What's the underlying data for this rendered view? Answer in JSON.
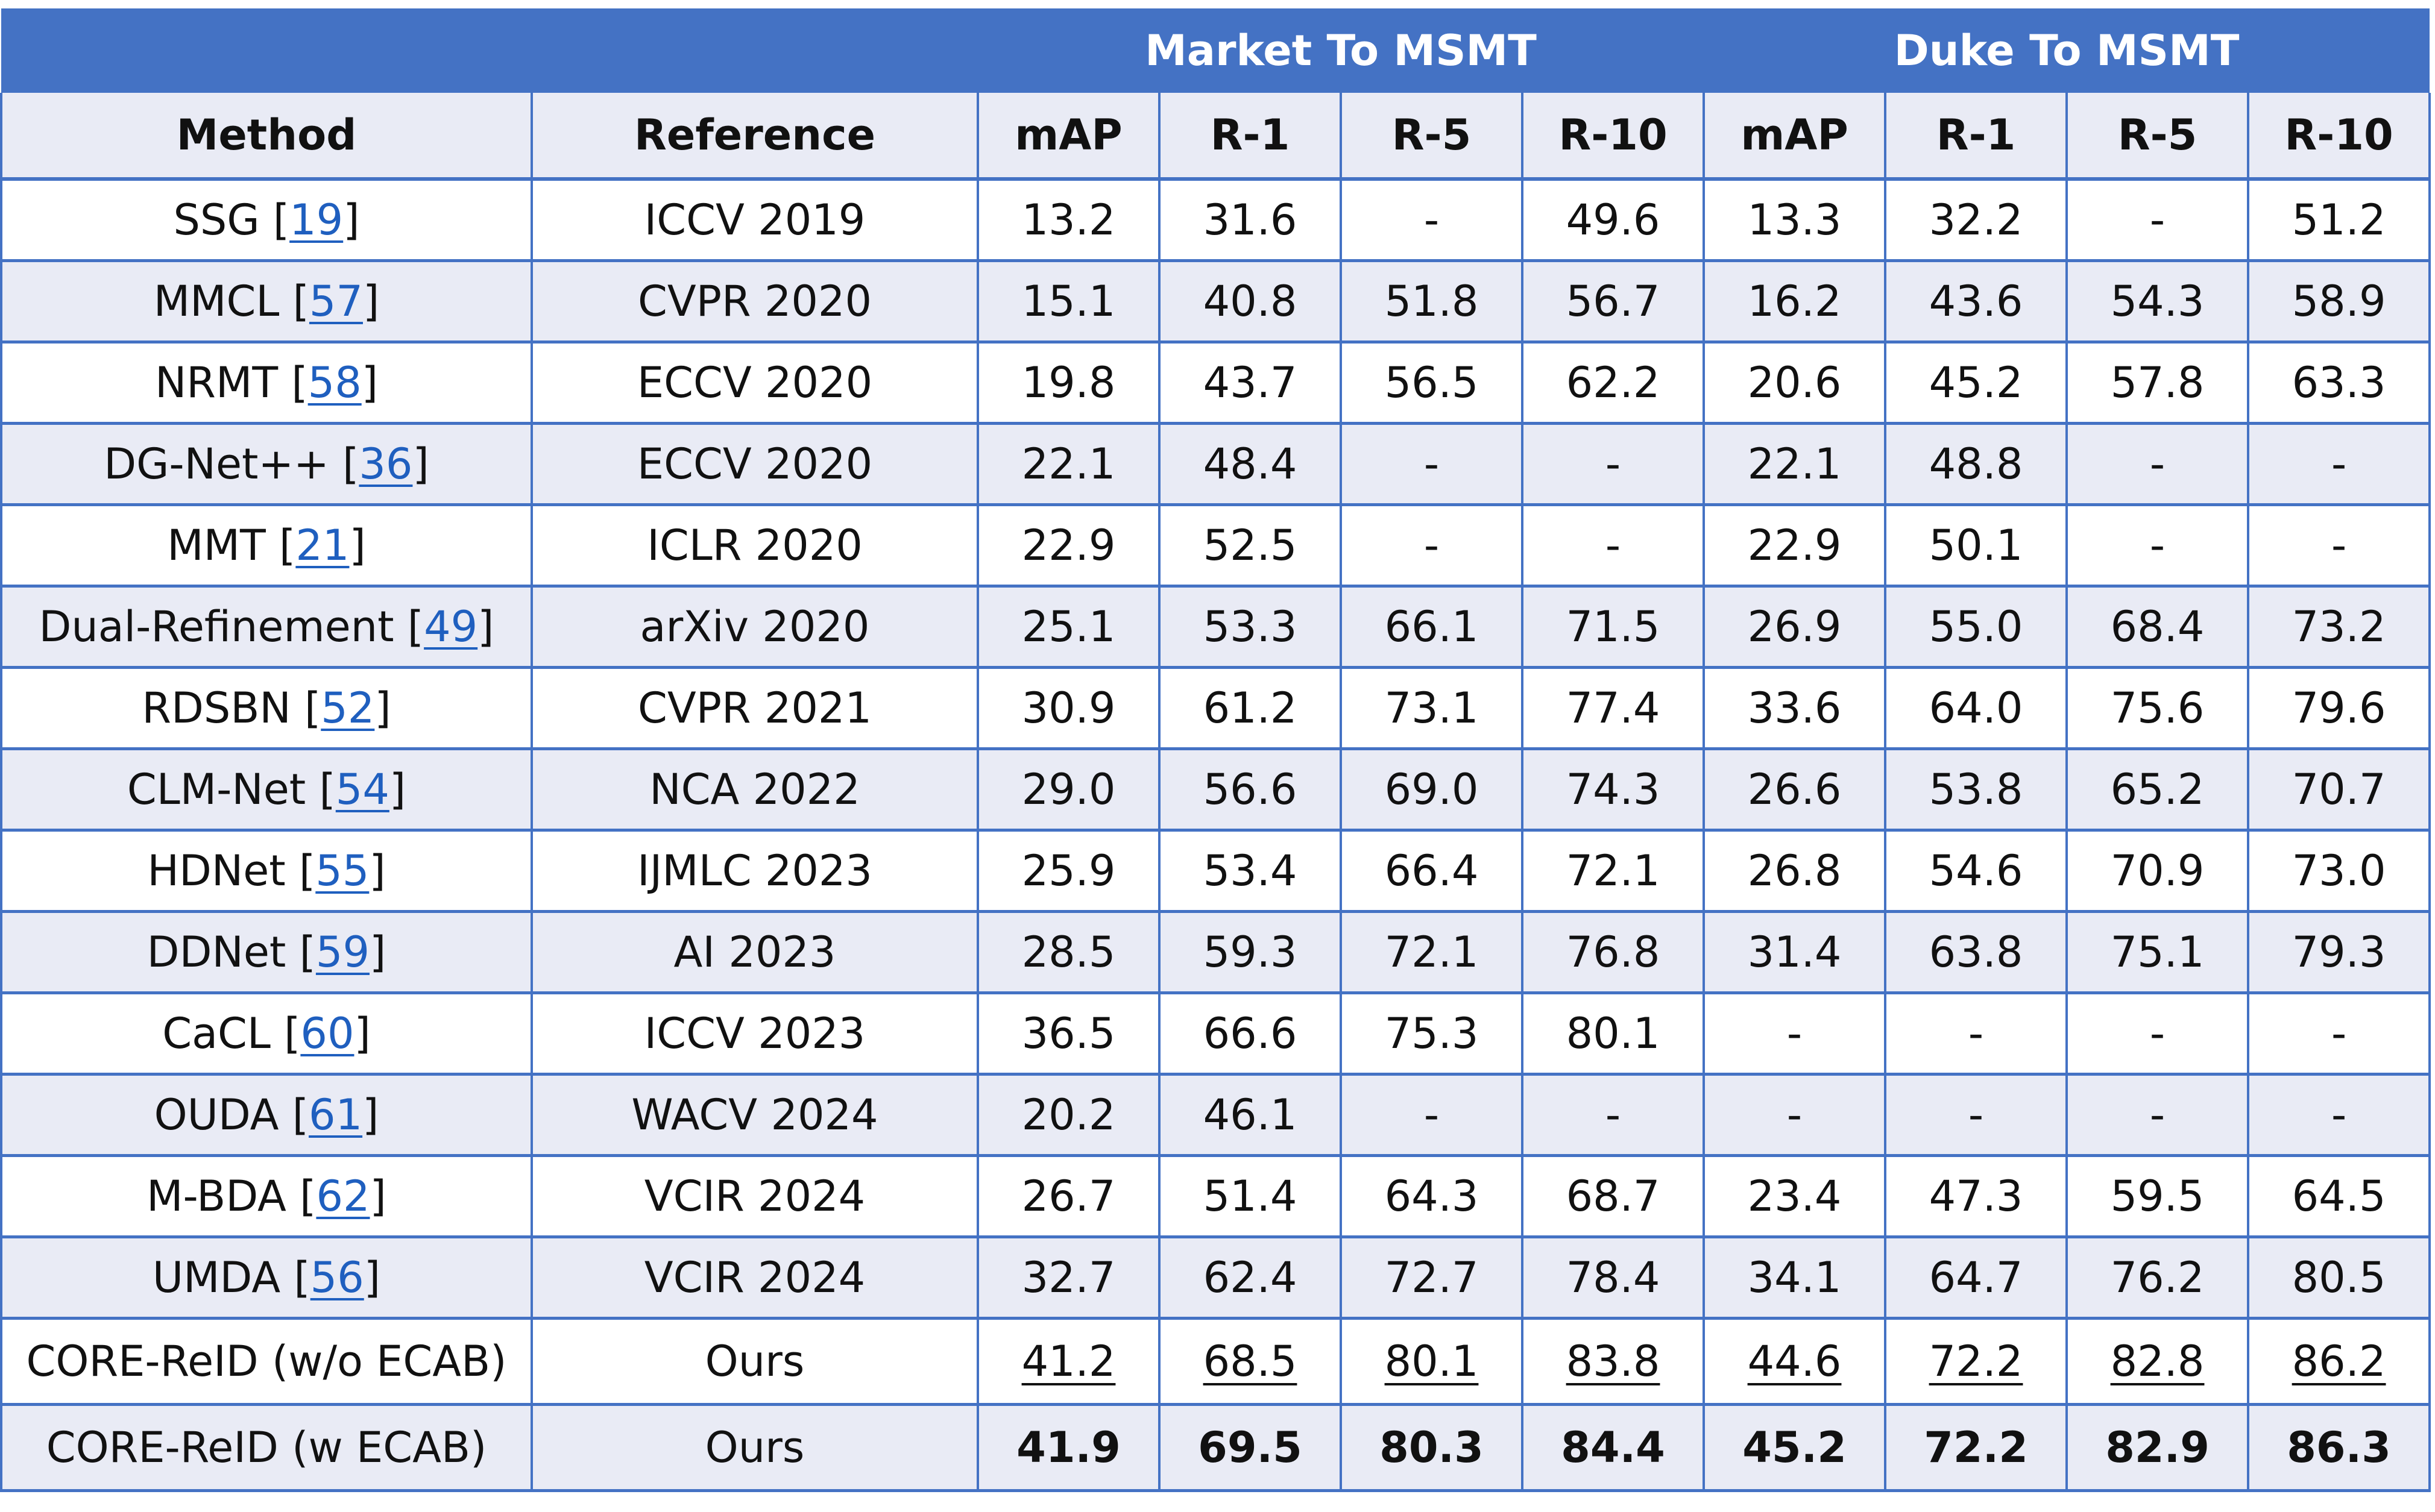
{
  "chart_data": {
    "type": "table",
    "title": "",
    "group_headers": [
      "Market To MSMT",
      "Duke To MSMT"
    ],
    "columns": [
      "Method",
      "Reference",
      "mAP",
      "R-1",
      "R-5",
      "R-10",
      "mAP",
      "R-1",
      "R-5",
      "R-10"
    ],
    "rows": [
      {
        "method": "SSG",
        "ref": "19",
        "reference": "ICCV 2019",
        "values": [
          "13.2",
          "31.6",
          "-",
          "49.6",
          "13.3",
          "32.2",
          "-",
          "51.2"
        ]
      },
      {
        "method": "MMCL",
        "ref": "57",
        "reference": "CVPR 2020",
        "values": [
          "15.1",
          "40.8",
          "51.8",
          "56.7",
          "16.2",
          "43.6",
          "54.3",
          "58.9"
        ]
      },
      {
        "method": "NRMT",
        "ref": "58",
        "reference": "ECCV 2020",
        "values": [
          "19.8",
          "43.7",
          "56.5",
          "62.2",
          "20.6",
          "45.2",
          "57.8",
          "63.3"
        ]
      },
      {
        "method": "DG-Net++",
        "ref": "36",
        "reference": "ECCV 2020",
        "values": [
          "22.1",
          "48.4",
          "-",
          "-",
          "22.1",
          "48.8",
          "-",
          "-"
        ]
      },
      {
        "method": "MMT",
        "ref": "21",
        "reference": "ICLR 2020",
        "values": [
          "22.9",
          "52.5",
          "-",
          "-",
          "22.9",
          "50.1",
          "-",
          "-"
        ]
      },
      {
        "method": "Dual-Refinement",
        "ref": "49",
        "reference": "arXiv 2020",
        "values": [
          "25.1",
          "53.3",
          "66.1",
          "71.5",
          "26.9",
          "55.0",
          "68.4",
          "73.2"
        ]
      },
      {
        "method": "RDSBN",
        "ref": "52",
        "reference": "CVPR 2021",
        "values": [
          "30.9",
          "61.2",
          "73.1",
          "77.4",
          "33.6",
          "64.0",
          "75.6",
          "79.6"
        ]
      },
      {
        "method": "CLM-Net",
        "ref": "54",
        "reference": "NCA 2022",
        "values": [
          "29.0",
          "56.6",
          "69.0",
          "74.3",
          "26.6",
          "53.8",
          "65.2",
          "70.7"
        ]
      },
      {
        "method": "HDNet",
        "ref": "55",
        "reference": "IJMLC 2023",
        "values": [
          "25.9",
          "53.4",
          "66.4",
          "72.1",
          "26.8",
          "54.6",
          "70.9",
          "73.0"
        ]
      },
      {
        "method": "DDNet",
        "ref": "59",
        "reference": "AI 2023",
        "values": [
          "28.5",
          "59.3",
          "72.1",
          "76.8",
          "31.4",
          "63.8",
          "75.1",
          "79.3"
        ]
      },
      {
        "method": "CaCL",
        "ref": "60",
        "reference": "ICCV 2023",
        "values": [
          "36.5",
          "66.6",
          "75.3",
          "80.1",
          "-",
          "-",
          "-",
          "-"
        ]
      },
      {
        "method": "OUDA",
        "ref": "61",
        "reference": "WACV 2024",
        "values": [
          "20.2",
          "46.1",
          "-",
          "-",
          "-",
          "-",
          "-",
          "-"
        ]
      },
      {
        "method": "M-BDA",
        "ref": "62",
        "reference": "VCIR 2024",
        "values": [
          "26.7",
          "51.4",
          "64.3",
          "68.7",
          "23.4",
          "47.3",
          "59.5",
          "64.5"
        ]
      },
      {
        "method": "UMDA",
        "ref": "56",
        "reference": "VCIR 2024",
        "values": [
          "32.7",
          "62.4",
          "72.7",
          "78.4",
          "34.1",
          "64.7",
          "76.2",
          "80.5"
        ]
      },
      {
        "method": "CORE-ReID (w/o ECAB)",
        "ref": "",
        "reference": "Ours",
        "style": "underline",
        "values": [
          "41.2",
          "68.5",
          "80.1",
          "83.8",
          "44.6",
          "72.2",
          "82.8",
          "86.2"
        ]
      },
      {
        "method": "CORE-ReID (w ECAB)",
        "ref": "",
        "reference": "Ours",
        "style": "bold",
        "values": [
          "41.9",
          "69.5",
          "80.3",
          "84.4",
          "45.2",
          "72.2",
          "82.9",
          "86.3"
        ]
      }
    ]
  },
  "colors": {
    "header_fill": "#4472c4",
    "band_fill": "#e9ebf5",
    "link": "#1f5fbf"
  }
}
